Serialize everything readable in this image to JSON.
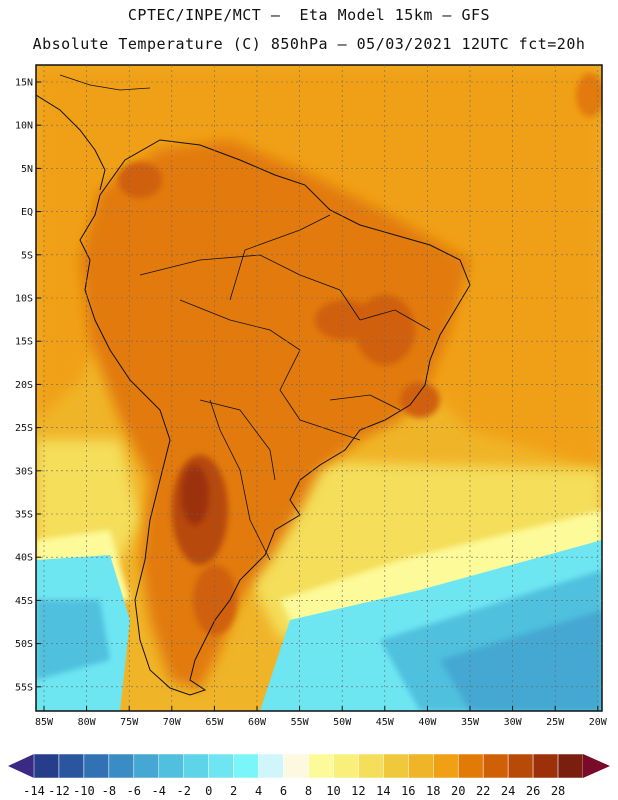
{
  "title": {
    "line1": "CPTEC/INPE/MCT –  Eta Model 15km – GFS",
    "line2": "Absolute Temperature (C) 850hPa – 05/03/2021 12UTC fct=20h"
  },
  "map": {
    "lat_labels": [
      "15N",
      "10N",
      "5N",
      "EQ",
      "5S",
      "10S",
      "15S",
      "20S",
      "25S",
      "30S",
      "35S",
      "40S",
      "45S",
      "50S",
      "55S"
    ],
    "lon_labels": [
      "85W",
      "80W",
      "75W",
      "70W",
      "65W",
      "60W",
      "55W",
      "50W",
      "45W",
      "40W",
      "35W",
      "30W",
      "25W",
      "20W"
    ]
  },
  "colorbar": {
    "labels": [
      "-14",
      "-12",
      "-10",
      "-8",
      "-6",
      "-4",
      "-2",
      "0",
      "2",
      "4",
      "6",
      "8",
      "10",
      "12",
      "14",
      "16",
      "18",
      "20",
      "22",
      "24",
      "26",
      "28"
    ],
    "colors": [
      "#243e8c",
      "#2a56a0",
      "#3272b4",
      "#3a8cc4",
      "#44a8d2",
      "#50c0de",
      "#5ed4e8",
      "#6ee6f2",
      "#7af6fa",
      "#d0f6fa",
      "#fdf8e0",
      "#fdfa9a",
      "#f8f07a",
      "#f4de5a",
      "#f0c83c",
      "#f0b428",
      "#f0a014",
      "#e27a08",
      "#d06008",
      "#b84a08",
      "#9c3008",
      "#7a1e10"
    ],
    "left_arrow": "#3a2a84",
    "right_arrow": "#7a0a2a"
  }
}
